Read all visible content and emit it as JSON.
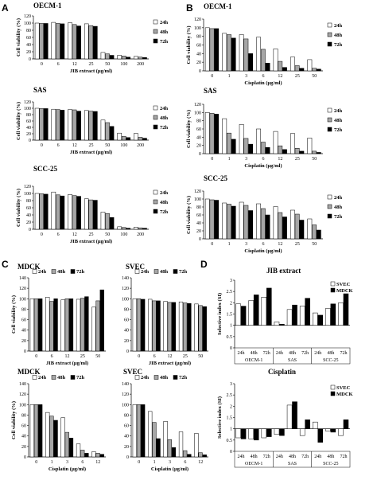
{
  "panel_labels": [
    "A",
    "B",
    "C",
    "D"
  ],
  "chart_data": [
    {
      "id": "A1",
      "panel": "A",
      "type": "bar",
      "title": "OECM-1",
      "xlabel": "JIB extract (μg/ml)",
      "ylabel": "Cell viability (%)",
      "categories": [
        "0",
        "6",
        "12",
        "25",
        "50",
        "100",
        "200"
      ],
      "ylim": [
        0,
        120
      ],
      "yticks": [
        0,
        20,
        40,
        60,
        80,
        100,
        120
      ],
      "legend": "right",
      "series": [
        {
          "name": "24h",
          "color": "#ffffff",
          "values": [
            100,
            102,
            101,
            98,
            18,
            10,
            7
          ]
        },
        {
          "name": "48h",
          "color": "#a6a6a6",
          "values": [
            99,
            99,
            96,
            93,
            14,
            8,
            5
          ]
        },
        {
          "name": "72h",
          "color": "#000000",
          "values": [
            99,
            98,
            92,
            91,
            10,
            5,
            4
          ]
        }
      ]
    },
    {
      "id": "A2",
      "panel": "A",
      "type": "bar",
      "title": "SAS",
      "xlabel": "JIB extract (μg/ml)",
      "ylabel": "Cell viability (%)",
      "categories": [
        "0",
        "6",
        "12",
        "25",
        "50",
        "100",
        "200"
      ],
      "ylim": [
        0,
        120
      ],
      "yticks": [
        0,
        20,
        40,
        60,
        80,
        100,
        120
      ],
      "legend": "right",
      "series": [
        {
          "name": "24h",
          "color": "#ffffff",
          "values": [
            100,
            97,
            96,
            93,
            63,
            22,
            21
          ]
        },
        {
          "name": "48h",
          "color": "#a6a6a6",
          "values": [
            99,
            96,
            95,
            91,
            55,
            12,
            9
          ]
        },
        {
          "name": "72h",
          "color": "#000000",
          "values": [
            99,
            94,
            91,
            90,
            43,
            8,
            6
          ]
        }
      ]
    },
    {
      "id": "A3",
      "panel": "A",
      "type": "bar",
      "title": "SCC-25",
      "xlabel": "JIB extract (μg/ml)",
      "ylabel": "Cell viability (%)",
      "categories": [
        "0",
        "6",
        "12",
        "25",
        "50",
        "100",
        "200"
      ],
      "ylim": [
        0,
        120
      ],
      "yticks": [
        0,
        20,
        40,
        60,
        80,
        100,
        120
      ],
      "legend": "right",
      "series": [
        {
          "name": "24h",
          "color": "#ffffff",
          "values": [
            100,
            104,
            97,
            85,
            48,
            7,
            6
          ]
        },
        {
          "name": "48h",
          "color": "#a6a6a6",
          "values": [
            99,
            96,
            94,
            82,
            44,
            5,
            4
          ]
        },
        {
          "name": "72h",
          "color": "#000000",
          "values": [
            98,
            93,
            92,
            81,
            33,
            3,
            3
          ]
        }
      ]
    },
    {
      "id": "B1",
      "panel": "B",
      "type": "bar",
      "title": "OECM-1",
      "xlabel": "Cisplatin (μg/ml)",
      "ylabel": "Cell viability (%)",
      "categories": [
        "0",
        "1",
        "3",
        "6",
        "12",
        "25",
        "50"
      ],
      "ylim": [
        0,
        120
      ],
      "yticks": [
        0,
        20,
        40,
        60,
        80,
        100,
        120
      ],
      "legend": "right",
      "series": [
        {
          "name": "24h",
          "color": "#ffffff",
          "values": [
            100,
            87,
            84,
            78,
            51,
            32,
            26
          ]
        },
        {
          "name": "48h",
          "color": "#a6a6a6",
          "values": [
            98,
            84,
            74,
            50,
            22,
            12,
            6
          ]
        },
        {
          "name": "72h",
          "color": "#000000",
          "values": [
            98,
            76,
            40,
            18,
            8,
            6,
            4
          ]
        }
      ]
    },
    {
      "id": "B2",
      "panel": "B",
      "type": "bar",
      "title": "SAS",
      "xlabel": "Cisplatin (μg/ml)",
      "ylabel": "Cell viability (%)",
      "categories": [
        "0",
        "1",
        "3",
        "6",
        "12",
        "25",
        "50"
      ],
      "ylim": [
        0,
        120
      ],
      "yticks": [
        0,
        20,
        40,
        60,
        80,
        100,
        120
      ],
      "legend": "right",
      "series": [
        {
          "name": "24h",
          "color": "#ffffff",
          "values": [
            100,
            85,
            71,
            60,
            54,
            49,
            38
          ]
        },
        {
          "name": "48h",
          "color": "#a6a6a6",
          "values": [
            98,
            50,
            37,
            28,
            19,
            13,
            6
          ]
        },
        {
          "name": "72h",
          "color": "#000000",
          "values": [
            96,
            35,
            23,
            15,
            10,
            6,
            3
          ]
        }
      ]
    },
    {
      "id": "B3",
      "panel": "B",
      "type": "bar",
      "title": "SCC-25",
      "xlabel": "Cisplatin (μg/ml)",
      "ylabel": "Cell viability (%)",
      "categories": [
        "0",
        "1",
        "3",
        "6",
        "12",
        "25",
        "50"
      ],
      "ylim": [
        0,
        120
      ],
      "yticks": [
        0,
        20,
        40,
        60,
        80,
        100,
        120
      ],
      "legend": "right",
      "series": [
        {
          "name": "24h",
          "color": "#ffffff",
          "values": [
            100,
            90,
            92,
            88,
            81,
            72,
            50
          ]
        },
        {
          "name": "48h",
          "color": "#a6a6a6",
          "values": [
            98,
            87,
            84,
            76,
            66,
            62,
            35
          ]
        },
        {
          "name": "72h",
          "color": "#000000",
          "values": [
            97,
            82,
            71,
            60,
            55,
            47,
            22
          ]
        }
      ]
    },
    {
      "id": "C1",
      "panel": "C",
      "type": "bar",
      "title": "MDCK",
      "xlabel": "JIB extract (μg/ml)",
      "ylabel": "Cell viability (%)",
      "categories": [
        "0",
        "6",
        "12",
        "25",
        "50"
      ],
      "ylim": [
        0,
        140
      ],
      "yticks": [
        0,
        20,
        40,
        60,
        80,
        100,
        120,
        140
      ],
      "legend": "top",
      "series": [
        {
          "name": "24h",
          "color": "#ffffff",
          "values": [
            100,
            103,
            98,
            99,
            84
          ]
        },
        {
          "name": "48h",
          "color": "#a6a6a6",
          "values": [
            100,
            95,
            100,
            101,
            96
          ]
        },
        {
          "name": "72h",
          "color": "#000000",
          "values": [
            100,
            100,
            100,
            104,
            117
          ]
        }
      ]
    },
    {
      "id": "C2",
      "panel": "C",
      "type": "bar",
      "title": "SVEC",
      "xlabel": "JIB extract (μg/ml)",
      "ylabel": "",
      "categories": [
        "0",
        "6",
        "12",
        "25",
        "50"
      ],
      "ylim": [
        0,
        140
      ],
      "yticks": [
        0,
        20,
        40,
        60,
        80,
        100,
        120,
        140
      ],
      "legend": "top",
      "series": [
        {
          "name": "24h",
          "color": "#ffffff",
          "values": [
            100,
            99,
            95,
            94,
            90
          ]
        },
        {
          "name": "48h",
          "color": "#a6a6a6",
          "values": [
            100,
            96,
            93,
            92,
            87
          ]
        },
        {
          "name": "72h",
          "color": "#000000",
          "values": [
            99,
            96,
            93,
            91,
            85
          ]
        }
      ]
    },
    {
      "id": "C3",
      "panel": "C",
      "type": "bar",
      "title": "MDCK",
      "xlabel": "Cisplatin (μg/ml)",
      "ylabel": "Cell viability (%)",
      "categories": [
        "0",
        "1",
        "3",
        "6",
        "12"
      ],
      "ylim": [
        0,
        140
      ],
      "yticks": [
        0,
        20,
        40,
        60,
        80,
        100,
        120,
        140
      ],
      "legend": "top",
      "series": [
        {
          "name": "24h",
          "color": "#ffffff",
          "values": [
            100,
            85,
            75,
            25,
            10
          ]
        },
        {
          "name": "48h",
          "color": "#a6a6a6",
          "values": [
            100,
            78,
            47,
            13,
            7
          ]
        },
        {
          "name": "72h",
          "color": "#000000",
          "values": [
            100,
            70,
            36,
            7,
            5
          ]
        }
      ]
    },
    {
      "id": "C4",
      "panel": "C",
      "type": "bar",
      "title": "SVEC",
      "xlabel": "Cisplatin (μg/ml)",
      "ylabel": "",
      "categories": [
        "0",
        "1",
        "3",
        "6",
        "12"
      ],
      "ylim": [
        0,
        140
      ],
      "yticks": [
        0,
        20,
        40,
        60,
        80,
        100,
        120,
        140
      ],
      "legend": "top",
      "series": [
        {
          "name": "24h",
          "color": "#ffffff",
          "values": [
            100,
            87,
            68,
            48,
            45
          ]
        },
        {
          "name": "48h",
          "color": "#a6a6a6",
          "values": [
            100,
            66,
            33,
            12,
            8
          ]
        },
        {
          "name": "72h",
          "color": "#000000",
          "values": [
            100,
            35,
            18,
            5,
            4
          ]
        }
      ]
    },
    {
      "id": "D1",
      "panel": "D",
      "type": "bar",
      "title": "JIB extract",
      "xlabel": "",
      "ylabel": "Selective index (SI)",
      "categories": [
        "24h",
        "48h",
        "72h",
        "24h",
        "48h",
        "72h",
        "24h",
        "48h",
        "72h"
      ],
      "groups": [
        "OECM-1",
        "SAS",
        "SCC-25"
      ],
      "ylim": [
        0,
        3
      ],
      "yticks": [
        0,
        0.5,
        1,
        1.5,
        2,
        2.5,
        3
      ],
      "baseline": 1,
      "legend": "top-right",
      "series": [
        {
          "name": "SVEC",
          "color": "#ffffff",
          "values": [
            1.95,
            2.1,
            2.25,
            1.15,
            1.7,
            1.85,
            1.55,
            1.75,
            2.0
          ]
        },
        {
          "name": "MDCK",
          "color": "#000000",
          "values": [
            1.85,
            2.35,
            2.65,
            1.05,
            1.9,
            2.2,
            1.45,
            1.95,
            2.4
          ]
        }
      ]
    },
    {
      "id": "D2",
      "panel": "D",
      "type": "bar",
      "title": "Cisplatin",
      "xlabel": "",
      "ylabel": "Selective index (SI)",
      "categories": [
        "24h",
        "48h",
        "72h",
        "24h",
        "48h",
        "72h",
        "24h",
        "48h",
        "72h"
      ],
      "groups": [
        "OECM-1",
        "SAS",
        "SCC-25"
      ],
      "ylim": [
        0,
        3
      ],
      "yticks": [
        0,
        0.5,
        1,
        1.5,
        2,
        2.5,
        3
      ],
      "baseline": 1,
      "legend": "top-right",
      "series": [
        {
          "name": "SVEC",
          "color": "#ffffff",
          "values": [
            0.6,
            0.55,
            0.6,
            0.75,
            2.05,
            0.7,
            1.3,
            0.9,
            0.7
          ]
        },
        {
          "name": "MDCK",
          "color": "#000000",
          "values": [
            0.55,
            0.5,
            0.65,
            0.7,
            2.2,
            1.4,
            0.4,
            0.85,
            1.4
          ]
        }
      ]
    }
  ]
}
